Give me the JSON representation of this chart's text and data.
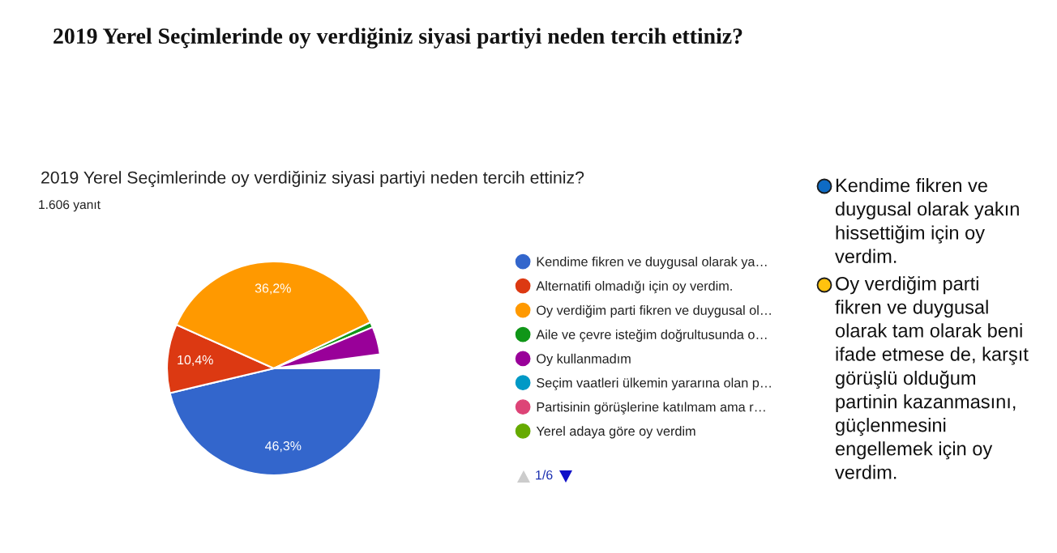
{
  "chart_data": {
    "type": "pie",
    "title": "2019 Yerel Seçimlerinde oy verdiğiniz siyasi partiyi neden tercih ettiniz?",
    "subtitle": "2019 Yerel Seçimlerinde oy verdiğiniz siyasi partiyi neden tercih ettiniz?",
    "categories": [
      "Kendime fikren ve duygusal olarak ya…",
      "Alternatifi olmadığı için oy verdim.",
      "Oy verdiğim parti fikren ve duygusal ol…",
      "Aile ve çevre isteğim doğrultusunda o…",
      "Oy kullanmadım",
      "Seçim vaatleri ülkemin yararına olan p…",
      "Partisinin görüşlerine katılmam ama r…",
      "Yerel adaya göre oy verdim"
    ],
    "values": [
      46.3,
      10.4,
      36.2,
      0.8,
      4.2,
      null,
      null,
      null
    ],
    "colors": [
      "#3366cc",
      "#dc3912",
      "#ff9900",
      "#109618",
      "#990099",
      "#0099c6",
      "#dd4477",
      "#66aa00"
    ],
    "value_labels": [
      "46,3%",
      "10,4%",
      "36,2%",
      null,
      null,
      null,
      null,
      null
    ],
    "legend": "right",
    "annotations": [
      "1.606 yanıt",
      "1/6",
      "Kendime fikren ve\nduygusal olarak yakın\nhissettiğim için oy\nverdim.",
      "Oy verdiğim parti\nfikren ve duygusal\nolarak tam olarak beni\nifade etmese de, karşıt\ngörüşlü olduğum\npartinin kazanmasını,\ngüçlenmesini\nengellemek için oy\nverdim."
    ]
  }
}
